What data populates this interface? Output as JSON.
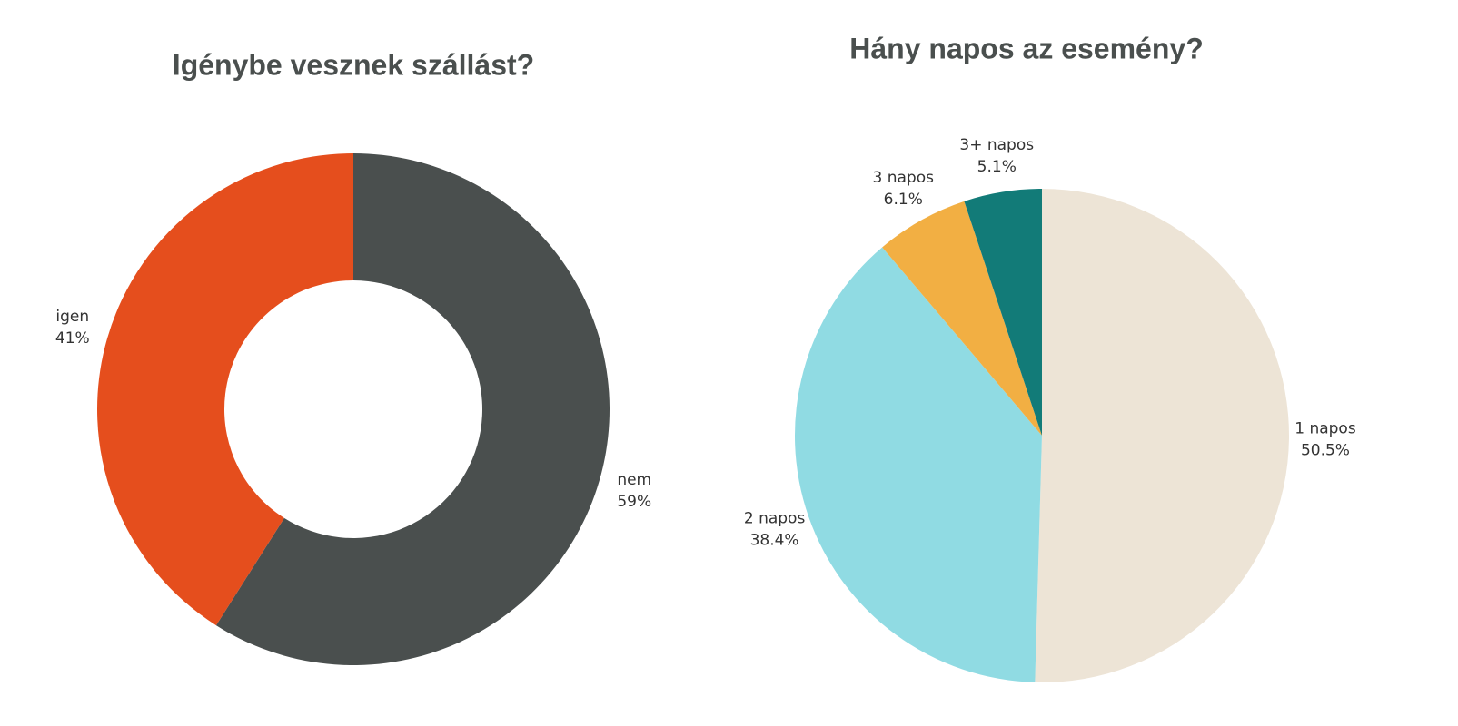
{
  "chart_data": [
    {
      "type": "donut",
      "title": "Igénybe vesznek szállást?",
      "categories": [
        "nem",
        "igen"
      ],
      "values": [
        59,
        41
      ],
      "value_labels": [
        "59%",
        "41%"
      ],
      "colors": [
        "#4a4f4e",
        "#e54e1d"
      ]
    },
    {
      "type": "pie",
      "title": "Hány napos az esemény?",
      "categories": [
        "1 napos",
        "2 napos",
        "3 napos",
        "3+ napos"
      ],
      "values": [
        50.5,
        38.4,
        6.1,
        5.1
      ],
      "value_labels": [
        "50.5%",
        "38.4%",
        "6.1%",
        "5.1%"
      ],
      "colors": [
        "#ede4d6",
        "#90dbe3",
        "#f2af43",
        "#127b78"
      ]
    }
  ]
}
